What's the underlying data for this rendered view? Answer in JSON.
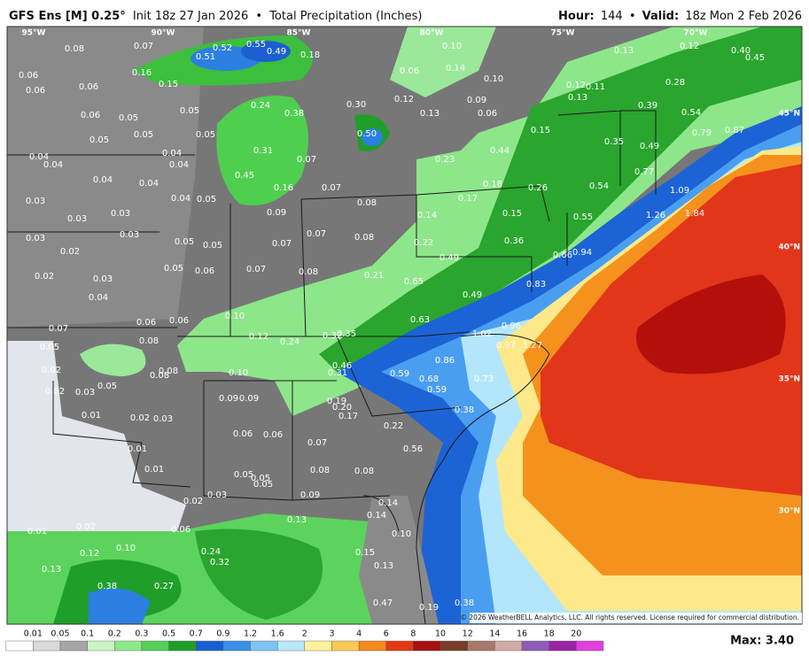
{
  "header": {
    "model": "GFS Ens [M] 0.25°",
    "init": "Init 18z 27 Jan 2026",
    "product": "Total Precipitation (Inches)",
    "hour_label": "Hour:",
    "hour": "144",
    "valid_label": "Valid:",
    "valid": "18z Mon 2 Feb 2026",
    "separator": "•"
  },
  "map": {
    "longitudes": [
      "95°W",
      "90°W",
      "85°W",
      "80°W",
      "75°W",
      "70°W"
    ],
    "latitudes": [
      "45°N",
      "40°N",
      "35°N",
      "30°N"
    ],
    "values": [
      "0.08",
      "0.07",
      "0.16",
      "0.51",
      "0.52",
      "0.55",
      "0.49",
      "0.18",
      "0.10",
      "0.14",
      "0.06",
      "0.10",
      "0.13",
      "0.12",
      "0.40",
      "0.45",
      "0.06",
      "0.06",
      "0.06",
      "0.15",
      "0.28",
      "0.12",
      "0.11",
      "0.13",
      "0.24",
      "0.38",
      "0.30",
      "0.12",
      "0.13",
      "0.09",
      "0.06",
      "0.39",
      "0.54",
      "0.06",
      "0.05",
      "0.05",
      "0.05",
      "0.50",
      "0.15",
      "0.35",
      "0.49",
      "0.79",
      "0.87",
      "0.05",
      "0.05",
      "0.04",
      "0.04",
      "0.31",
      "0.07",
      "0.44",
      "0.04",
      "0.04",
      "0.45",
      "0.16",
      "0.07",
      "0.23",
      "0.77",
      "0.04",
      "0.04",
      "0.04",
      "0.05",
      "0.18",
      "0.26",
      "0.54",
      "1.09",
      "0.03",
      "0.09",
      "0.08",
      "0.17",
      "0.15",
      "0.55",
      "1.26",
      "1.84",
      "0.03",
      "0.03",
      "0.14",
      "0.07",
      "0.08",
      "0.03",
      "0.03",
      "0.05",
      "0.05",
      "0.07",
      "0.22",
      "0.36",
      "0.66",
      "0.94",
      "0.02",
      "0.02",
      "0.03",
      "0.05",
      "0.06",
      "0.07",
      "0.08",
      "0.21",
      "0.49",
      "0.65",
      "0.49",
      "0.83",
      "0.04",
      "0.06",
      "0.06",
      "0.10",
      "0.63",
      "0.96",
      "0.07",
      "0.05",
      "0.12",
      "0.24",
      "0.32",
      "0.35",
      "1.02",
      "0.97",
      "1.27",
      "0.08",
      "0.08",
      "0.08",
      "0.10",
      "0.46",
      "0.31",
      "0.59",
      "0.68",
      "0.86",
      "0.73",
      "0.02",
      "0.59",
      "0.02",
      "0.03",
      "0.05",
      "0.09",
      "0.09",
      "0.19",
      "0.20",
      "0.17",
      "0.38",
      "0.01",
      "0.02",
      "0.03",
      "0.22",
      "0.06",
      "0.06",
      "0.07",
      "0.56",
      "0.01",
      "0.01",
      "0.08",
      "0.08",
      "0.05",
      "0.05",
      "0.05",
      "0.09",
      "0.03",
      "0.02",
      "0.14",
      "0.14",
      "0.13",
      "0.01",
      "0.02",
      "0.06",
      "0.10",
      "0.12",
      "0.10",
      "0.24",
      "0.32",
      "0.15",
      "0.13",
      "0.13",
      "0.38",
      "0.27",
      "0.47",
      "0.19",
      "0.38"
    ],
    "copyright": "© 2026 WeatherBELL Analytics, LLC. All rights reserved. License required for commercial distribution."
  },
  "colorbar": {
    "labels": [
      "0.01",
      "0.05",
      "0.1",
      "0.2",
      "0.3",
      "0.5",
      "0.7",
      "0.9",
      "1.2",
      "1.6",
      "2",
      "3",
      "4",
      "6",
      "8",
      "10",
      "12",
      "14",
      "16",
      "18",
      "20"
    ],
    "colors": [
      "#ffffff",
      "#d9d9d9",
      "#a6a6a6",
      "#ccf5c4",
      "#8fe88a",
      "#55cf55",
      "#1f9e2a",
      "#1a5fd0",
      "#3c8fe6",
      "#7dc3f4",
      "#b8e8fa",
      "#fff29a",
      "#fcc955",
      "#f58a1f",
      "#e03a14",
      "#a81010",
      "#7a3d2a",
      "#a9786a",
      "#d2aaa4",
      "#8e5cb8",
      "#9a23a6",
      "#e040e0"
    ],
    "max": "Max: 3.40"
  }
}
